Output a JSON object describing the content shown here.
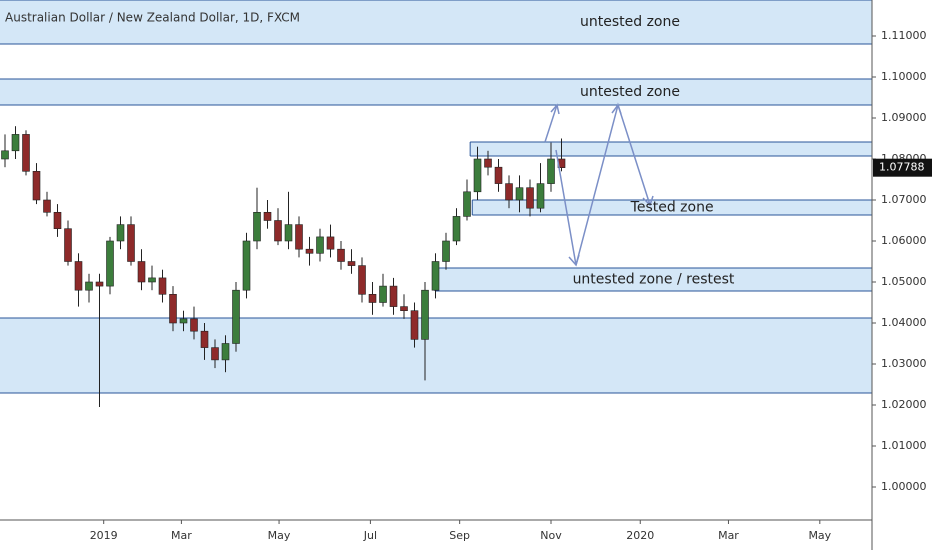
{
  "chart_data": {
    "type": "candlestick",
    "title": "Australian Dollar / New Zealand Dollar, 1D, FXCM",
    "x": [
      0,
      1,
      2,
      3,
      4,
      5,
      6,
      7,
      8,
      9,
      10,
      11,
      12,
      13,
      14,
      15,
      16,
      17,
      18,
      19,
      20,
      21,
      22,
      23,
      24,
      25,
      26,
      27,
      28,
      29,
      30,
      31,
      32,
      33,
      34,
      35,
      36,
      37,
      38,
      39,
      40,
      41,
      42,
      43,
      44,
      45,
      46,
      47,
      48,
      49,
      50,
      51,
      52,
      53
    ],
    "open": [
      1.08,
      1.082,
      1.086,
      1.077,
      1.07,
      1.067,
      1.063,
      1.055,
      1.048,
      1.05,
      1.049,
      1.06,
      1.064,
      1.055,
      1.05,
      1.051,
      1.047,
      1.04,
      1.041,
      1.038,
      1.034,
      1.031,
      1.035,
      1.048,
      1.06,
      1.067,
      1.065,
      1.06,
      1.064,
      1.058,
      1.057,
      1.061,
      1.058,
      1.055,
      1.054,
      1.047,
      1.045,
      1.049,
      1.044,
      1.043,
      1.036,
      1.048,
      1.055,
      1.06,
      1.066,
      1.072,
      1.08,
      1.078,
      1.074,
      1.07,
      1.073,
      1.068,
      1.074,
      1.08
    ],
    "high": [
      1.086,
      1.088,
      1.087,
      1.079,
      1.072,
      1.069,
      1.065,
      1.057,
      1.052,
      1.052,
      1.061,
      1.066,
      1.066,
      1.058,
      1.054,
      1.053,
      1.049,
      1.043,
      1.044,
      1.04,
      1.036,
      1.037,
      1.05,
      1.062,
      1.073,
      1.07,
      1.068,
      1.072,
      1.066,
      1.061,
      1.063,
      1.064,
      1.06,
      1.058,
      1.056,
      1.05,
      1.052,
      1.051,
      1.047,
      1.045,
      1.05,
      1.057,
      1.062,
      1.068,
      1.075,
      1.083,
      1.082,
      1.08,
      1.076,
      1.076,
      1.075,
      1.079,
      1.084,
      1.085
    ],
    "low": [
      1.078,
      1.08,
      1.076,
      1.069,
      1.066,
      1.061,
      1.054,
      1.044,
      1.045,
      1.0195,
      1.047,
      1.058,
      1.054,
      1.048,
      1.048,
      1.045,
      1.038,
      1.038,
      1.036,
      1.031,
      1.029,
      1.028,
      1.033,
      1.046,
      1.058,
      1.063,
      1.059,
      1.058,
      1.056,
      1.054,
      1.055,
      1.056,
      1.053,
      1.052,
      1.045,
      1.042,
      1.044,
      1.042,
      1.041,
      1.034,
      1.026,
      1.046,
      1.053,
      1.059,
      1.065,
      1.07,
      1.076,
      1.072,
      1.068,
      1.067,
      1.066,
      1.067,
      1.072,
      1.077
    ],
    "close": [
      1.082,
      1.086,
      1.077,
      1.07,
      1.067,
      1.063,
      1.055,
      1.048,
      1.05,
      1.049,
      1.06,
      1.064,
      1.055,
      1.05,
      1.051,
      1.047,
      1.04,
      1.041,
      1.038,
      1.034,
      1.031,
      1.035,
      1.048,
      1.06,
      1.067,
      1.065,
      1.06,
      1.064,
      1.058,
      1.057,
      1.061,
      1.058,
      1.055,
      1.054,
      1.047,
      1.045,
      1.049,
      1.044,
      1.043,
      1.036,
      1.048,
      1.055,
      1.06,
      1.066,
      1.072,
      1.08,
      1.078,
      1.074,
      1.07,
      1.073,
      1.068,
      1.074,
      1.08,
      1.07788
    ],
    "up_color": "#3c7d3c",
    "down_color": "#8e2a2a",
    "xlim": [
      -0.476,
      82.57
    ],
    "xticks": [
      {
        "value": 9.4,
        "label": "2019"
      },
      {
        "value": 16.8,
        "label": "Mar"
      },
      {
        "value": 26.1,
        "label": "May"
      },
      {
        "value": 34.8,
        "label": "Jul"
      },
      {
        "value": 43.3,
        "label": "Sep"
      },
      {
        "value": 52.0,
        "label": "Nov"
      },
      {
        "value": 60.5,
        "label": "2020"
      },
      {
        "value": 68.9,
        "label": "Mar"
      },
      {
        "value": 77.6,
        "label": "May"
      }
    ],
    "ylim": [
      0.99195,
      1.11878
    ],
    "yticks": [
      {
        "value": 1.0,
        "label": "1.00000"
      },
      {
        "value": 1.01,
        "label": "1.01000"
      },
      {
        "value": 1.02,
        "label": "1.02000"
      },
      {
        "value": 1.03,
        "label": "1.03000"
      },
      {
        "value": 1.04,
        "label": "1.04000"
      },
      {
        "value": 1.05,
        "label": "1.05000"
      },
      {
        "value": 1.06,
        "label": "1.06000"
      },
      {
        "value": 1.07,
        "label": "1.07000"
      },
      {
        "value": 1.08,
        "label": "1.08000"
      },
      {
        "value": 1.09,
        "label": "1.09000"
      },
      {
        "value": 1.1,
        "label": "1.10000"
      },
      {
        "value": 1.11,
        "label": "1.11000"
      }
    ],
    "last_price": {
      "value": 1.07788,
      "label": "1.07788"
    },
    "grid": false,
    "zone_color": "#d4e7f7",
    "zone_border": "#2a5599",
    "zones": [
      {
        "top": 1.11878,
        "bottom": 1.10805,
        "label": "untested zone"
      },
      {
        "top": 1.09951,
        "bottom": 1.09317,
        "label": "untested zone"
      },
      {
        "top": 1.08415,
        "bottom": 1.08073,
        "x0": 44.3
      },
      {
        "top": 1.07,
        "bottom": 1.06634,
        "x0": 44.5,
        "label": "Tested zone"
      },
      {
        "top": 1.05341,
        "bottom": 1.0478,
        "x0": 40.95,
        "label": "untested zone / restest"
      },
      {
        "top": 1.04122,
        "bottom": 1.02293
      }
    ]
  }
}
